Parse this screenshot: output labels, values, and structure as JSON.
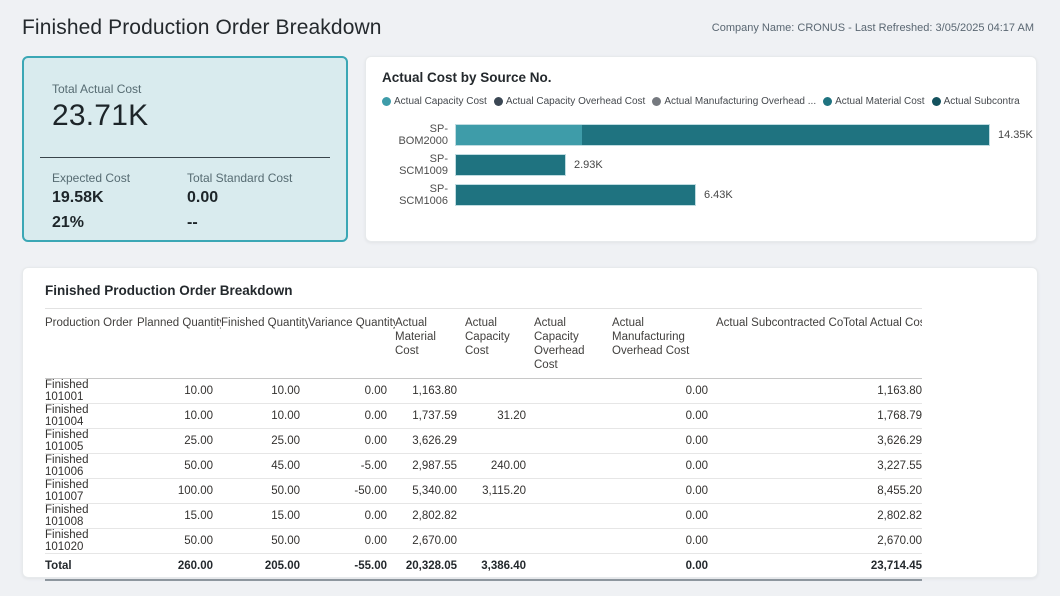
{
  "header": {
    "title": "Finished Production Order Breakdown",
    "meta": "Company Name: CRONUS - Last Refreshed: 3/05/2025 04:17 AM"
  },
  "kpi": {
    "primary_label": "Total Actual Cost",
    "primary_value": "23.71K",
    "secondary": [
      {
        "label": "Expected Cost",
        "value": "19.58K",
        "extra": "21%"
      },
      {
        "label": "Total Standard Cost",
        "value": "0.00",
        "extra": "--"
      }
    ],
    "accent_color": "#3ba7b5",
    "background_color": "#d9ebee"
  },
  "chart_data": {
    "type": "bar",
    "orientation": "horizontal",
    "title": "Actual Cost by Source No.",
    "categories": [
      "SP-BOM2000",
      "SP-SCM1009",
      "SP-SCM1006"
    ],
    "series": [
      {
        "name": "Actual Capacity Cost",
        "color": "#3E9CA9",
        "values": [
          3386.4,
          0,
          0
        ]
      },
      {
        "name": "Actual Capacity Overhead Cost",
        "color": "#3B4754",
        "values": [
          0,
          0,
          0
        ]
      },
      {
        "name": "Actual Manufacturing Overhead ...",
        "color": "#75797F",
        "values": [
          0,
          0,
          0
        ]
      },
      {
        "name": "Actual Material Cost",
        "color": "#1F7380",
        "values": [
          10963.65,
          2930,
          6430
        ]
      },
      {
        "name": "Actual Subcontracted ...",
        "color": "#14525E",
        "values": [
          0,
          0,
          0
        ]
      }
    ],
    "totals": [
      14350,
      2930,
      6430
    ],
    "bar_labels": [
      "14.35K",
      "2.93K",
      "6.43K"
    ],
    "xlim": [
      0,
      14350
    ],
    "legend_position": "top",
    "grid": false
  },
  "table": {
    "title": "Finished Production Order Breakdown",
    "columns": [
      "Production Order",
      "Planned Quantity",
      "Finished Quantity",
      "Variance Quantity",
      "Actual Material Cost",
      "Actual Capacity Cost",
      "Actual Capacity Overhead Cost",
      "Actual Manufacturing Overhead Cost",
      "Actual Subcontracted Cost",
      "Total Actual Cost"
    ],
    "rows": [
      [
        "Finished 101001",
        "10.00",
        "10.00",
        "0.00",
        "1,163.80",
        "",
        "",
        "0.00",
        "",
        "1,163.80"
      ],
      [
        "Finished 101004",
        "10.00",
        "10.00",
        "0.00",
        "1,737.59",
        "31.20",
        "",
        "0.00",
        "",
        "1,768.79"
      ],
      [
        "Finished 101005",
        "25.00",
        "25.00",
        "0.00",
        "3,626.29",
        "",
        "",
        "0.00",
        "",
        "3,626.29"
      ],
      [
        "Finished 101006",
        "50.00",
        "45.00",
        "-5.00",
        "2,987.55",
        "240.00",
        "",
        "0.00",
        "",
        "3,227.55"
      ],
      [
        "Finished 101007",
        "100.00",
        "50.00",
        "-50.00",
        "5,340.00",
        "3,115.20",
        "",
        "0.00",
        "",
        "8,455.20"
      ],
      [
        "Finished 101008",
        "15.00",
        "15.00",
        "0.00",
        "2,802.82",
        "",
        "",
        "0.00",
        "",
        "2,802.82"
      ],
      [
        "Finished 101020",
        "50.00",
        "50.00",
        "0.00",
        "2,670.00",
        "",
        "",
        "0.00",
        "",
        "2,670.00"
      ]
    ],
    "total_row": [
      "Total",
      "260.00",
      "205.00",
      "-55.00",
      "20,328.05",
      "3,386.40",
      "",
      "0.00",
      "",
      "23,714.45"
    ]
  }
}
